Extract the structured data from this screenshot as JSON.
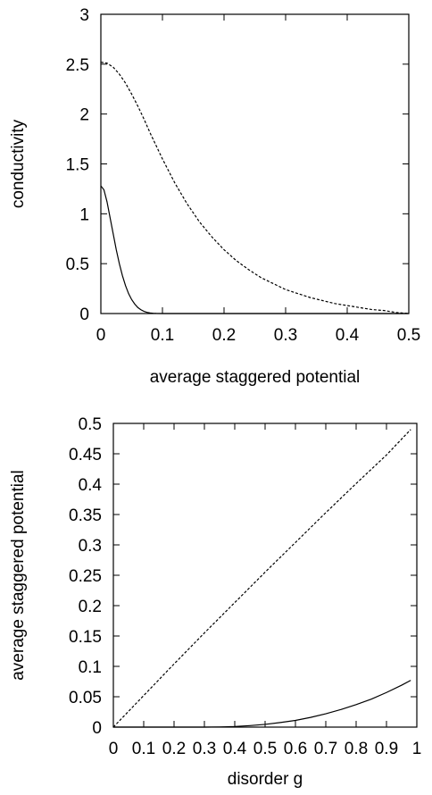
{
  "chart_data": [
    {
      "type": "line",
      "xlabel": "average staggered potential",
      "ylabel": "conductivity",
      "xlim": [
        0,
        0.5
      ],
      "ylim": [
        0,
        3
      ],
      "xticks": [
        0,
        0.1,
        0.2,
        0.3,
        0.4,
        0.5
      ],
      "xtick_labels": [
        "0",
        "0.1",
        "0.2",
        "0.3",
        "0.4",
        "0.5"
      ],
      "yticks": [
        0,
        0.5,
        1,
        1.5,
        2,
        2.5,
        3
      ],
      "ytick_labels": [
        "0",
        "0.5",
        "1",
        "1.5",
        "2",
        "2.5",
        "3"
      ],
      "grid": false,
      "series": [
        {
          "style": "dashed",
          "x": [
            0,
            0.01,
            0.02,
            0.03,
            0.04,
            0.05,
            0.06,
            0.07,
            0.08,
            0.09,
            0.1,
            0.12,
            0.14,
            0.16,
            0.18,
            0.2,
            0.22,
            0.24,
            0.26,
            0.28,
            0.3,
            0.32,
            0.34,
            0.36,
            0.38,
            0.4,
            0.42,
            0.44,
            0.46,
            0.48,
            0.5
          ],
          "y": [
            2.52,
            2.51,
            2.47,
            2.4,
            2.31,
            2.2,
            2.08,
            1.95,
            1.81,
            1.68,
            1.55,
            1.31,
            1.1,
            0.92,
            0.77,
            0.64,
            0.53,
            0.44,
            0.36,
            0.3,
            0.24,
            0.2,
            0.16,
            0.13,
            0.1,
            0.08,
            0.06,
            0.04,
            0.03,
            0.01,
            0.0
          ]
        },
        {
          "style": "solid",
          "x": [
            0,
            0.005,
            0.01,
            0.015,
            0.02,
            0.025,
            0.03,
            0.035,
            0.04,
            0.045,
            0.05,
            0.055,
            0.06,
            0.065,
            0.07,
            0.075,
            0.08,
            0.085,
            0.09,
            0.1,
            0.2,
            0.3,
            0.4,
            0.5
          ],
          "y": [
            1.28,
            1.24,
            1.12,
            0.96,
            0.8,
            0.64,
            0.5,
            0.38,
            0.28,
            0.2,
            0.14,
            0.095,
            0.06,
            0.038,
            0.022,
            0.012,
            0.006,
            0.003,
            0.001,
            0,
            0,
            0,
            0,
            0
          ]
        }
      ]
    },
    {
      "type": "line",
      "xlabel": "disorder g",
      "ylabel": "average staggered potential",
      "xlim": [
        0,
        1
      ],
      "ylim": [
        0,
        0.5
      ],
      "xticks": [
        0,
        0.1,
        0.2,
        0.3,
        0.4,
        0.5,
        0.6,
        0.7,
        0.8,
        0.9,
        1
      ],
      "xtick_labels": [
        "0",
        "0.1",
        "0.2",
        "0.3",
        "0.4",
        "0.5",
        "0.6",
        "0.7",
        "0.8",
        "0.9",
        "1"
      ],
      "yticks": [
        0,
        0.05,
        0.1,
        0.15,
        0.2,
        0.25,
        0.3,
        0.35,
        0.4,
        0.45,
        0.5
      ],
      "ytick_labels": [
        "0",
        "0.05",
        "0.1",
        "0.15",
        "0.2",
        "0.25",
        "0.3",
        "0.35",
        "0.4",
        "0.45",
        "0.5"
      ],
      "grid": false,
      "series": [
        {
          "style": "dashed",
          "x": [
            0,
            0.1,
            0.2,
            0.3,
            0.4,
            0.5,
            0.6,
            0.7,
            0.8,
            0.9,
            0.98
          ],
          "y": [
            0,
            0.052,
            0.104,
            0.155,
            0.205,
            0.255,
            0.304,
            0.353,
            0.401,
            0.448,
            0.49
          ]
        },
        {
          "style": "solid",
          "x": [
            0,
            0.1,
            0.2,
            0.3,
            0.35,
            0.4,
            0.45,
            0.5,
            0.55,
            0.6,
            0.65,
            0.7,
            0.75,
            0.8,
            0.85,
            0.9,
            0.95,
            0.98
          ],
          "y": [
            0,
            0,
            0,
            0,
            0.0003,
            0.001,
            0.0025,
            0.0045,
            0.0075,
            0.011,
            0.016,
            0.022,
            0.029,
            0.037,
            0.046,
            0.057,
            0.069,
            0.077
          ]
        }
      ]
    }
  ]
}
